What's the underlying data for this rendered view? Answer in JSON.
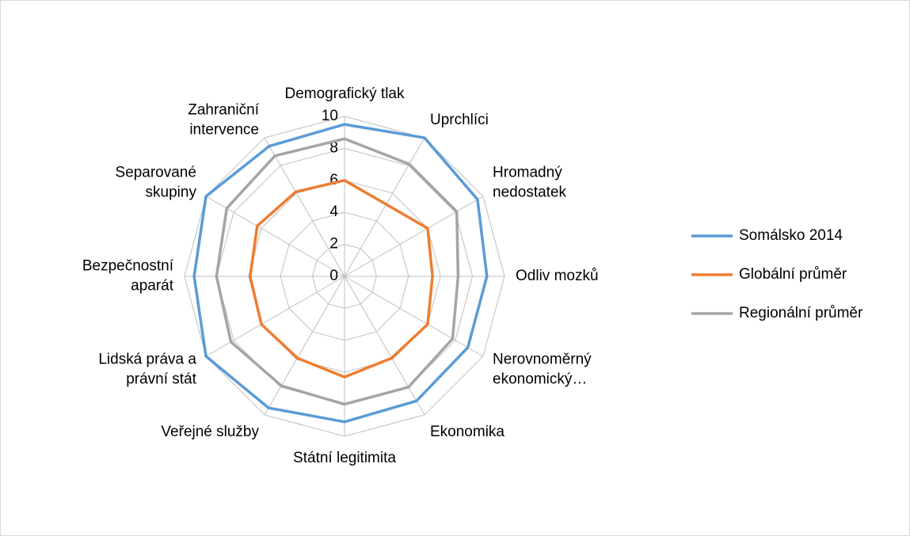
{
  "chart_data": {
    "type": "radar",
    "categories": [
      "Demografický tlak",
      "Uprchlíci",
      "Hromadný\nnedostatek",
      "Odliv mozků",
      "Nerovnoměrný\nekonomický…",
      "Ekonomika",
      "Státní legitimita",
      "Veřejné služby",
      "Lidská práva a\nprávní stát",
      "Bezpečnostní\naparát",
      "Separované\nskupiny",
      "Zahraniční\nintervence"
    ],
    "series": [
      {
        "name": "Somálsko 2014",
        "color": "#5b9bd5",
        "values": [
          9.5,
          10,
          9.6,
          8.9,
          8.9,
          9.0,
          9.1,
          9.5,
          10,
          9.4,
          10,
          9.4
        ]
      },
      {
        "name": "Globální průměr",
        "color": "#ed7d31",
        "values": [
          6.0,
          5.2,
          6.0,
          5.5,
          6.0,
          5.9,
          6.3,
          5.9,
          6.0,
          5.9,
          6.3,
          6.1
        ]
      },
      {
        "name": "Regionální průměr",
        "color": "#a5a5a5",
        "values": [
          8.6,
          8.1,
          8.1,
          7.1,
          7.8,
          8.0,
          8.0,
          7.9,
          8.2,
          8.0,
          8.5,
          8.7
        ]
      }
    ],
    "ylim": [
      0,
      10
    ],
    "yticks": [
      0,
      2,
      4,
      6,
      8,
      10
    ],
    "grid": true,
    "legend": "right"
  }
}
